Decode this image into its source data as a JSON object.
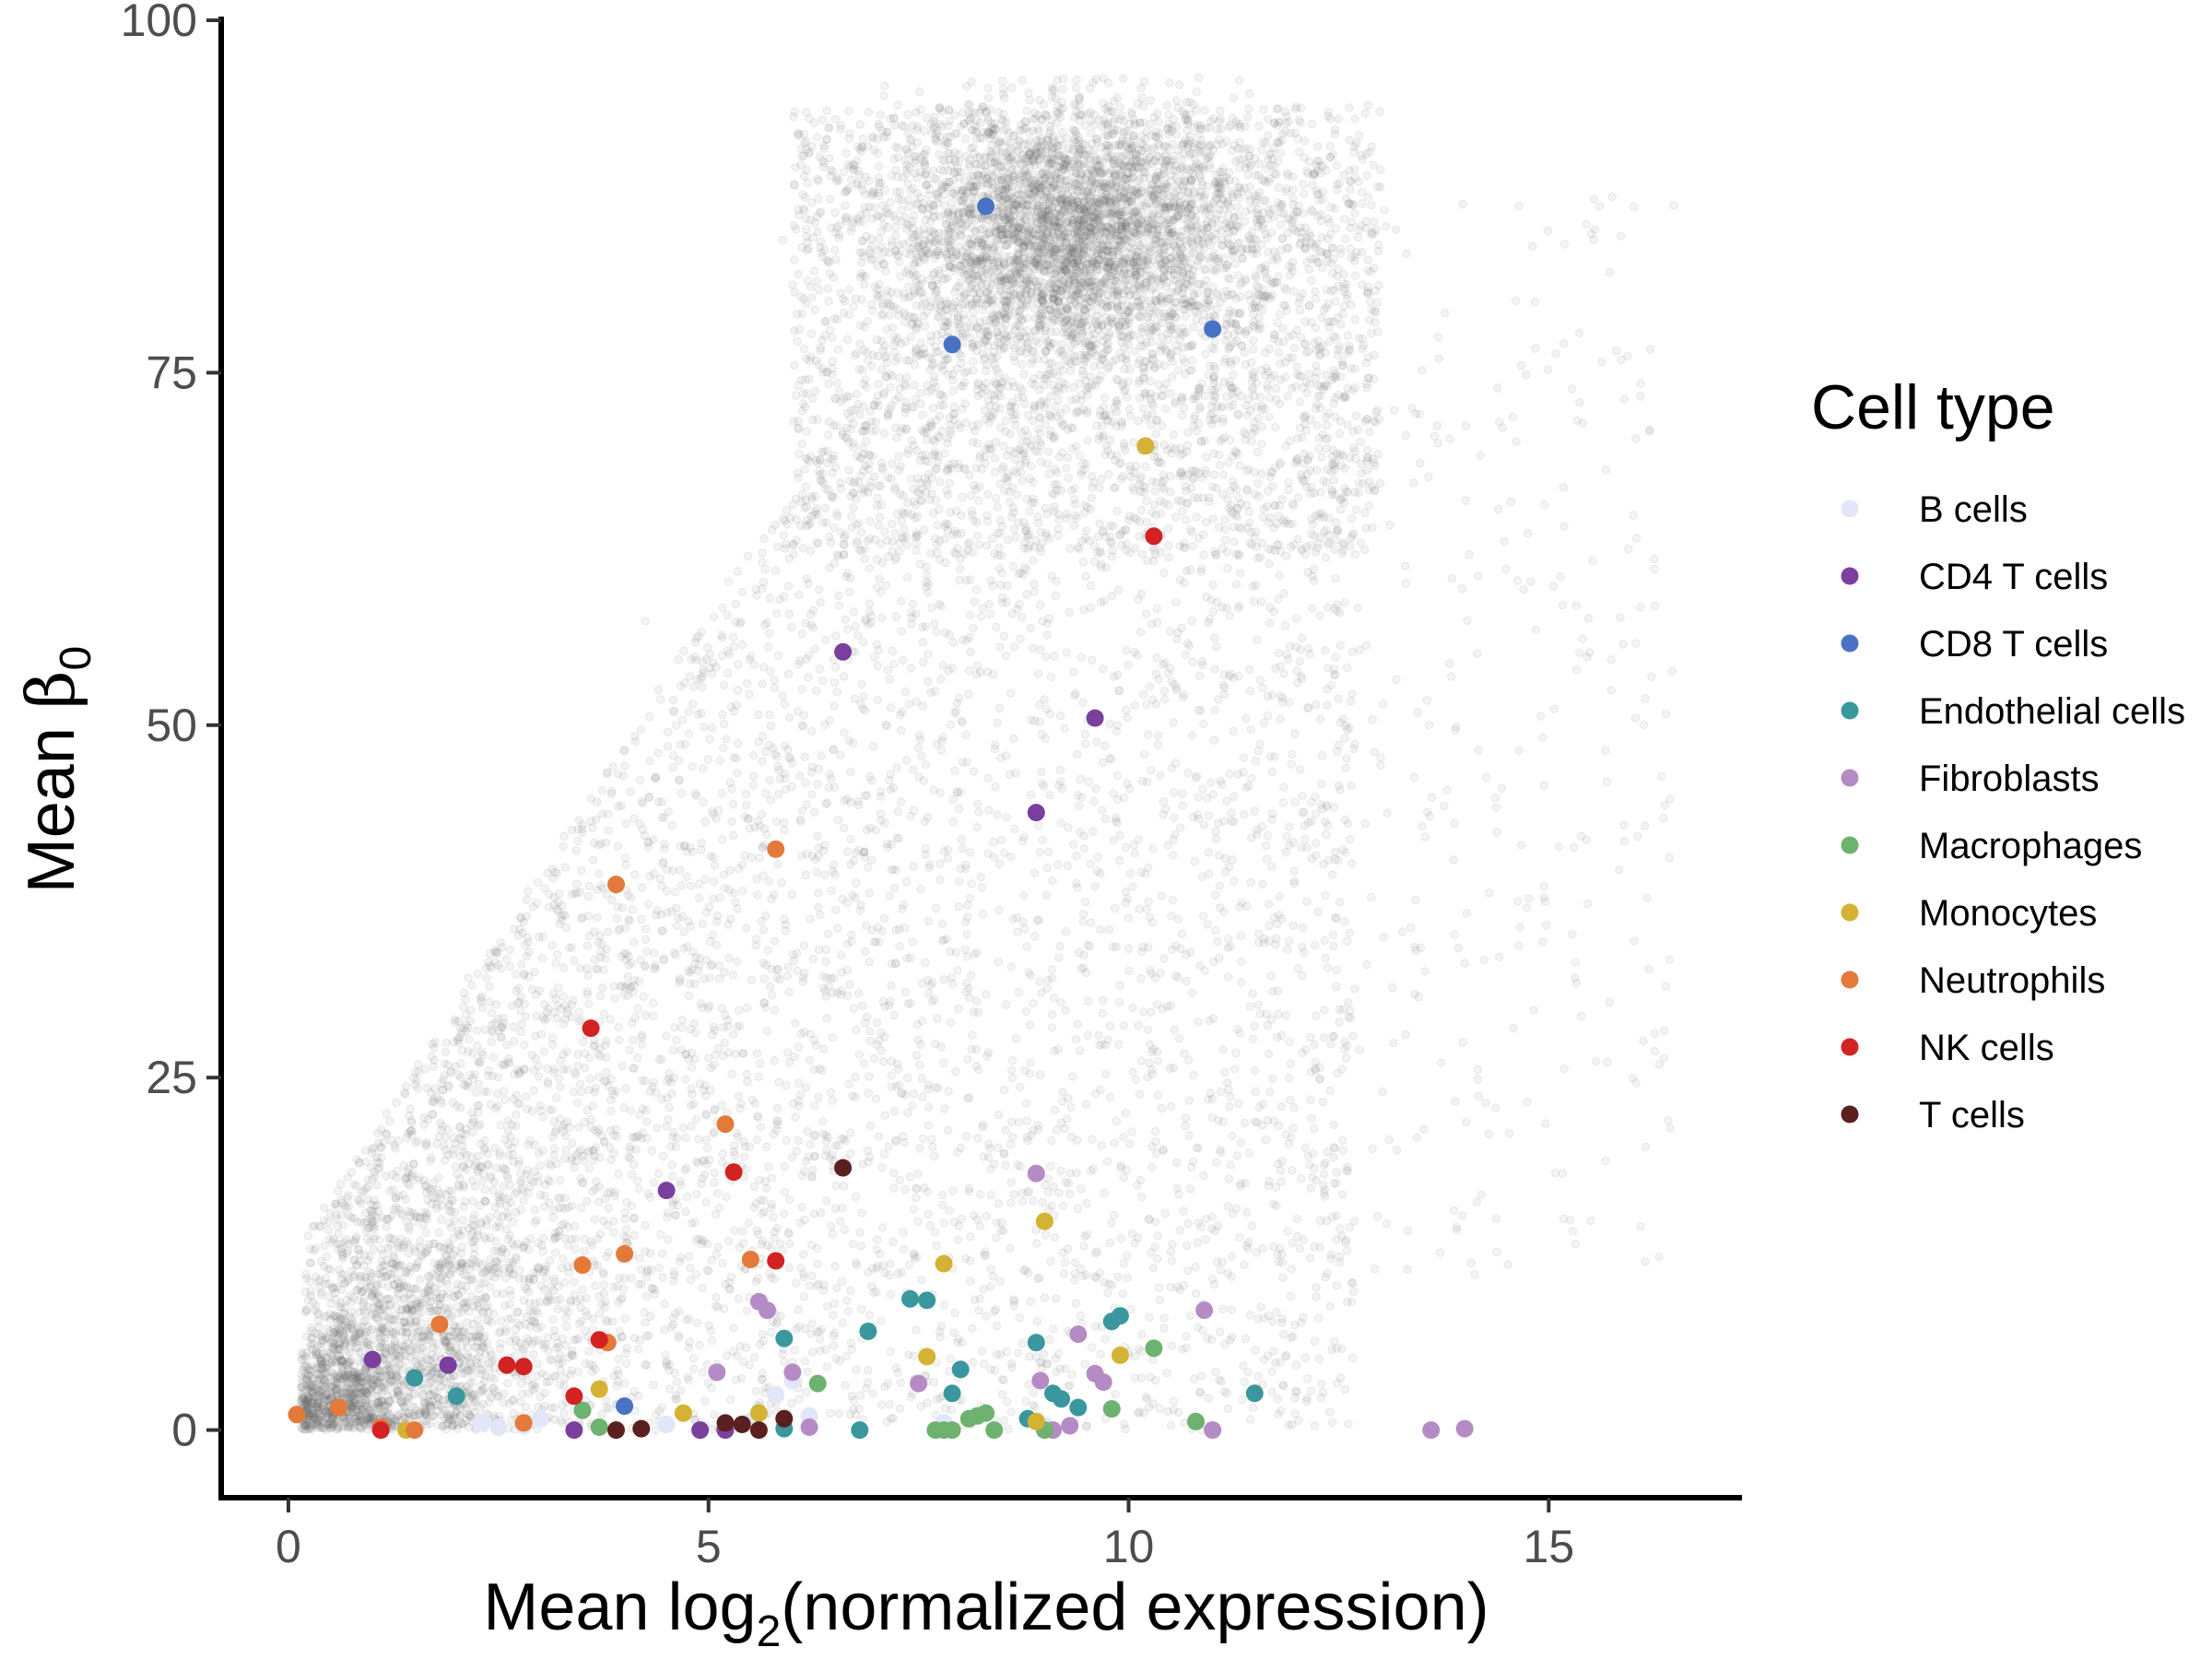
{
  "chart_data": {
    "type": "scatter",
    "xlabel_prefix": "Mean log",
    "xlabel_sub": "2",
    "xlabel_suffix": "(normalized expression)",
    "ylabel_prefix": "Mean ",
    "ylabel_symbol": "β",
    "ylabel_sub": "0",
    "xlim": [
      -0.8,
      17.3
    ],
    "ylim": [
      -4.8,
      100
    ],
    "x_ticks": [
      0,
      5,
      10,
      15
    ],
    "y_ticks": [
      0,
      25,
      50,
      75,
      100
    ],
    "grid": false,
    "legend_placement": "right",
    "legend_title": "Cell type",
    "background_genes": {
      "color": "#666666",
      "description_visible": false
    },
    "series": [
      {
        "name": "B cells",
        "color": "#E3E6F8",
        "points": [
          [
            2.3,
            0.5
          ],
          [
            2.5,
            0.2
          ],
          [
            2.8,
            0.3
          ],
          [
            3.0,
            0.8
          ],
          [
            4.5,
            0.4
          ],
          [
            5.5,
            0.6
          ],
          [
            5.8,
            2.5
          ],
          [
            6.0,
            3.5
          ],
          [
            6.2,
            1.0
          ],
          [
            7.8,
            0.5
          ],
          [
            9.0,
            0.3
          ]
        ]
      },
      {
        "name": "CD4 T cells",
        "color": "#7B3F9E",
        "points": [
          [
            1.0,
            5.0
          ],
          [
            1.9,
            4.6
          ],
          [
            3.4,
            0.0
          ],
          [
            4.5,
            17.0
          ],
          [
            4.9,
            0.0
          ],
          [
            5.2,
            0.0
          ],
          [
            6.6,
            55.2
          ],
          [
            8.9,
            43.8
          ],
          [
            9.6,
            50.5
          ]
        ]
      },
      {
        "name": "CD8 T cells",
        "color": "#4A72C4",
        "points": [
          [
            4.0,
            1.7
          ],
          [
            7.9,
            77.0
          ],
          [
            8.3,
            86.8
          ],
          [
            11.0,
            78.1
          ]
        ]
      },
      {
        "name": "Endothelial cells",
        "color": "#3A979E",
        "points": [
          [
            1.5,
            3.7
          ],
          [
            2.0,
            2.4
          ],
          [
            5.9,
            6.5
          ],
          [
            6.9,
            7.0
          ],
          [
            7.4,
            9.3
          ],
          [
            7.6,
            9.2
          ],
          [
            7.9,
            2.6
          ],
          [
            8.0,
            4.3
          ],
          [
            8.8,
            0.8
          ],
          [
            8.9,
            6.2
          ],
          [
            9.1,
            2.6
          ],
          [
            9.2,
            2.2
          ],
          [
            9.4,
            1.6
          ],
          [
            9.8,
            7.7
          ],
          [
            9.9,
            8.1
          ],
          [
            11.5,
            2.6
          ],
          [
            5.9,
            0.1
          ],
          [
            6.8,
            0.0
          ]
        ]
      },
      {
        "name": "Fibroblasts",
        "color": "#B58BC6",
        "points": [
          [
            5.1,
            4.1
          ],
          [
            5.6,
            9.1
          ],
          [
            5.7,
            8.5
          ],
          [
            6.0,
            4.1
          ],
          [
            6.2,
            0.2
          ],
          [
            7.5,
            3.3
          ],
          [
            8.9,
            18.2
          ],
          [
            8.95,
            3.5
          ],
          [
            9.1,
            0.0
          ],
          [
            9.4,
            6.8
          ],
          [
            9.6,
            4.0
          ],
          [
            9.7,
            3.4
          ],
          [
            10.9,
            8.5
          ],
          [
            11.0,
            0.0
          ],
          [
            13.6,
            0.0
          ],
          [
            14.0,
            0.1
          ],
          [
            9.3,
            0.3
          ]
        ]
      },
      {
        "name": "Macrophages",
        "color": "#6DB26E",
        "points": [
          [
            3.5,
            1.4
          ],
          [
            3.7,
            0.2
          ],
          [
            6.3,
            3.3
          ],
          [
            7.7,
            0.0
          ],
          [
            7.9,
            0.0
          ],
          [
            8.1,
            0.8
          ],
          [
            8.2,
            1.0
          ],
          [
            8.3,
            1.2
          ],
          [
            8.4,
            0.0
          ],
          [
            9.0,
            0.0
          ],
          [
            9.8,
            1.5
          ],
          [
            10.3,
            5.8
          ],
          [
            10.8,
            0.6
          ],
          [
            7.8,
            0.0
          ]
        ]
      },
      {
        "name": "Monocytes",
        "color": "#D4B233",
        "points": [
          [
            1.4,
            0.0
          ],
          [
            3.7,
            2.9
          ],
          [
            4.7,
            1.2
          ],
          [
            5.6,
            1.2
          ],
          [
            7.6,
            5.2
          ],
          [
            7.8,
            11.8
          ],
          [
            9.0,
            14.8
          ],
          [
            9.9,
            5.3
          ],
          [
            10.2,
            69.8
          ],
          [
            8.9,
            0.6
          ]
        ]
      },
      {
        "name": "Neutrophils",
        "color": "#E4793A",
        "points": [
          [
            0.1,
            1.1
          ],
          [
            0.6,
            1.6
          ],
          [
            1.1,
            0.2
          ],
          [
            1.5,
            0.0
          ],
          [
            1.8,
            7.5
          ],
          [
            2.8,
            0.5
          ],
          [
            3.5,
            11.7
          ],
          [
            3.8,
            6.2
          ],
          [
            3.9,
            38.7
          ],
          [
            4.0,
            12.5
          ],
          [
            5.2,
            21.7
          ],
          [
            5.5,
            12.1
          ],
          [
            5.8,
            41.2
          ]
        ]
      },
      {
        "name": "NK cells",
        "color": "#D22222",
        "points": [
          [
            1.1,
            0.0
          ],
          [
            2.6,
            4.6
          ],
          [
            2.8,
            4.5
          ],
          [
            3.4,
            2.4
          ],
          [
            3.6,
            28.5
          ],
          [
            3.7,
            6.4
          ],
          [
            5.3,
            18.3
          ],
          [
            5.8,
            12.0
          ],
          [
            10.3,
            63.4
          ]
        ]
      },
      {
        "name": "T cells",
        "color": "#5A1F1F",
        "points": [
          [
            3.9,
            0.0
          ],
          [
            4.2,
            0.1
          ],
          [
            5.2,
            0.5
          ],
          [
            5.4,
            0.4
          ],
          [
            5.6,
            0.0
          ],
          [
            5.9,
            0.8
          ],
          [
            6.6,
            18.6
          ]
        ]
      }
    ]
  }
}
